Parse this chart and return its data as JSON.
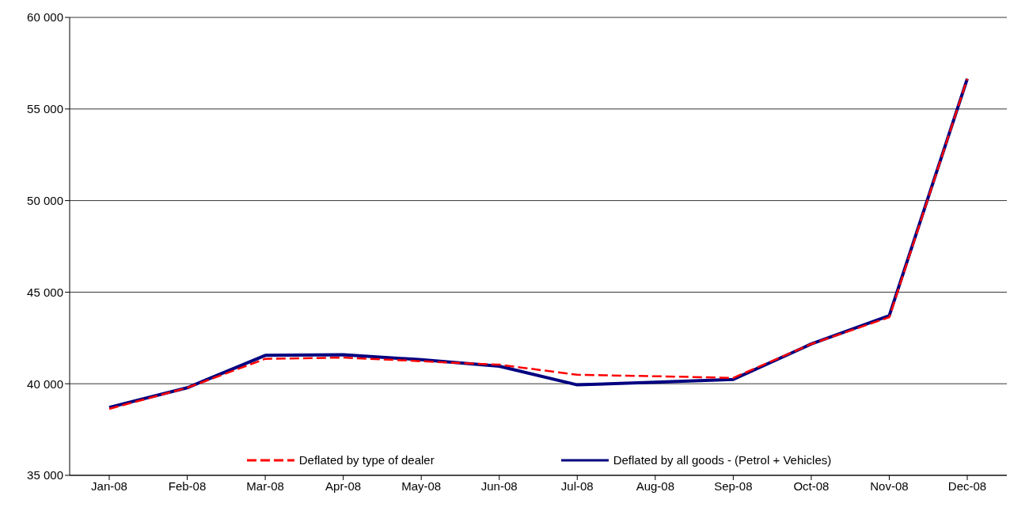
{
  "chart_data": {
    "type": "line",
    "categories": [
      "Jan-08",
      "Feb-08",
      "Mar-08",
      "Apr-08",
      "May-08",
      "Jun-08",
      "Jul-08",
      "Aug-08",
      "Sep-08",
      "Oct-08",
      "Nov-08",
      "Dec-08"
    ],
    "series": [
      {
        "name": "Deflated by type of dealer",
        "color": "#ff0000",
        "line_style": "dashed",
        "values": [
          38630,
          39780,
          41360,
          41430,
          41230,
          41040,
          40490,
          40410,
          40320,
          42170,
          43630,
          56650
        ]
      },
      {
        "name": "Deflated by all goods - (Petrol + Vehicles)",
        "color": "#000080",
        "line_style": "solid",
        "values": [
          38710,
          39780,
          41550,
          41580,
          41310,
          40960,
          39940,
          40080,
          40240,
          42170,
          43720,
          56650
        ]
      }
    ],
    "ylim": [
      35000,
      60000
    ],
    "yticks": [
      {
        "value": 35000,
        "label": "35 000"
      },
      {
        "value": 40000,
        "label": "40 000"
      },
      {
        "value": 45000,
        "label": "45 000"
      },
      {
        "value": 50000,
        "label": "50 000"
      },
      {
        "value": 55000,
        "label": "55 000"
      },
      {
        "value": 60000,
        "label": "60 000"
      }
    ],
    "grid": "y",
    "legend": "bottom",
    "marker": "none"
  }
}
